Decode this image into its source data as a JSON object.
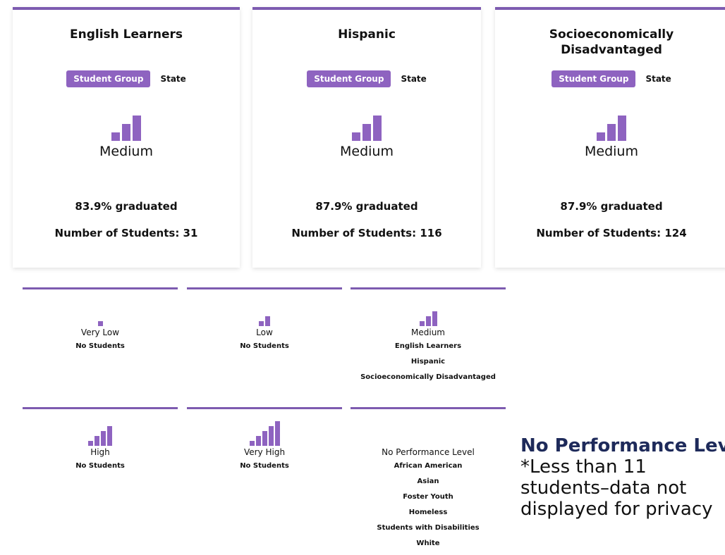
{
  "cards": [
    {
      "title": "English Learners",
      "button": "Student Group",
      "toggle": "State",
      "level": "Medium",
      "rate": "83.9% graduated",
      "students": "Number of Students: 31"
    },
    {
      "title": "Hispanic",
      "button": "Student Group",
      "toggle": "State",
      "level": "Medium",
      "rate": "87.9% graduated",
      "students": "Number of Students: 116"
    },
    {
      "title": "Socioeconomically Disadvantaged",
      "button": "Student Group",
      "toggle": "State",
      "level": "Medium",
      "rate": "87.9% graduated",
      "students": "Number of Students: 124"
    }
  ],
  "levels": [
    {
      "label": "Very Low",
      "groups": [
        "No Students"
      ]
    },
    {
      "label": "Low",
      "groups": [
        "No Students"
      ]
    },
    {
      "label": "Medium",
      "groups": [
        "English Learners",
        "Hispanic",
        "Socioeconomically Disadvantaged"
      ]
    },
    {
      "label": "High",
      "groups": [
        "No Students"
      ]
    },
    {
      "label": "Very High",
      "groups": [
        "No Students"
      ]
    },
    {
      "label": "No Performance Level",
      "groups": [
        "African American",
        "Asian",
        "Foster Youth",
        "Homeless",
        "Students with Disabilities",
        "White"
      ]
    }
  ],
  "note": {
    "title": "No Performance Level",
    "text": "*Less than 11 students–data not displayed for privacy"
  }
}
